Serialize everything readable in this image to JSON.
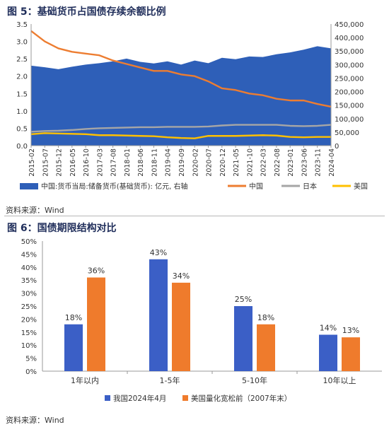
{
  "figure1": {
    "title": "图 5：基础货币占国债存续余额比例",
    "source": "资料来源：Wind",
    "legend": [
      "中国:货币当局:储备货币(基础货币): 亿元, 右轴",
      "中国",
      "日本",
      "美国"
    ]
  },
  "figure2": {
    "title": "图 6：国债期限结构对比",
    "source": "资料来源：Wind",
    "legend": [
      "我国2024年4月",
      "美国量化宽松前（2007年末）"
    ]
  },
  "colors": {
    "area": "#2e5fb8",
    "china": "#ed7d31",
    "japan": "#a6a6a6",
    "us": "#ffc000",
    "bar1": "#3b5fc6",
    "bar2": "#ef7b2c"
  },
  "chart_data": [
    {
      "type": "line",
      "title": "图 5：基础货币占国债存续余额比例",
      "x_ticks": [
        "2015-02",
        "2015-07",
        "2015-12",
        "2016-05",
        "2016-10",
        "2017-03",
        "2017-08",
        "2018-01",
        "2018-06",
        "2018-11",
        "2019-04",
        "2019-09",
        "2020-02",
        "2020-07",
        "2020-12",
        "2021-05",
        "2021-10",
        "2022-03",
        "2022-08",
        "2023-01",
        "2023-06",
        "2023-11",
        "2024-04"
      ],
      "y_left_ticks": [
        "0.0",
        "0.5",
        "1.0",
        "1.5",
        "2.0",
        "2.5",
        "3.0",
        "3.5"
      ],
      "y_right_ticks": [
        "0",
        "50,000",
        "100,000",
        "150,000",
        "200,000",
        "250,000",
        "300,000",
        "350,000",
        "400,000",
        "450,000"
      ],
      "ylim_left": [
        0,
        3.5
      ],
      "ylim_right": [
        0,
        450000
      ],
      "series": [
        {
          "name": "中国:货币当局:储备货币(基础货币): 亿元, 右轴",
          "axis": "right",
          "kind": "area",
          "values": [
            296000,
            290000,
            283000,
            292000,
            300000,
            305000,
            312000,
            322000,
            310000,
            304000,
            312000,
            300000,
            315000,
            305000,
            325000,
            320000,
            330000,
            328000,
            338000,
            345000,
            355000,
            368000,
            360000
          ]
        },
        {
          "name": "中国",
          "axis": "left",
          "kind": "line",
          "values": [
            3.3,
            3.0,
            2.8,
            2.7,
            2.65,
            2.6,
            2.45,
            2.35,
            2.25,
            2.15,
            2.15,
            2.05,
            2.0,
            1.85,
            1.65,
            1.6,
            1.5,
            1.45,
            1.35,
            1.3,
            1.3,
            1.2,
            1.12
          ]
        },
        {
          "name": "日本",
          "axis": "left",
          "kind": "line",
          "values": [
            0.4,
            0.42,
            0.43,
            0.45,
            0.48,
            0.5,
            0.51,
            0.52,
            0.53,
            0.53,
            0.54,
            0.54,
            0.54,
            0.55,
            0.58,
            0.6,
            0.6,
            0.6,
            0.6,
            0.57,
            0.56,
            0.57,
            0.6
          ]
        },
        {
          "name": "美国",
          "axis": "left",
          "kind": "line",
          "values": [
            0.33,
            0.36,
            0.35,
            0.34,
            0.33,
            0.3,
            0.3,
            0.29,
            0.28,
            0.27,
            0.24,
            0.22,
            0.21,
            0.28,
            0.28,
            0.28,
            0.29,
            0.3,
            0.29,
            0.25,
            0.24,
            0.25,
            0.25
          ]
        }
      ]
    },
    {
      "type": "bar",
      "title": "图 6：国债期限结构对比",
      "categories": [
        "1年以内",
        "1-5年",
        "5-10年",
        "10年以上"
      ],
      "y_ticks": [
        "0%",
        "5%",
        "10%",
        "15%",
        "20%",
        "25%",
        "30%",
        "35%",
        "40%",
        "45%",
        "50%"
      ],
      "ylim": [
        0,
        50
      ],
      "series": [
        {
          "name": "我国2024年4月",
          "values": [
            18,
            43,
            25,
            14
          ],
          "labels": [
            "18%",
            "43%",
            "25%",
            "14%"
          ]
        },
        {
          "name": "美国量化宽松前（2007年末）",
          "values": [
            36,
            34,
            18,
            13
          ],
          "labels": [
            "36%",
            "34%",
            "18%",
            "13%"
          ]
        }
      ]
    }
  ]
}
